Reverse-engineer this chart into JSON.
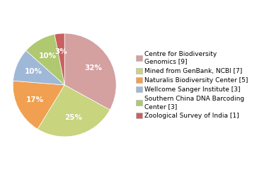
{
  "labels": [
    "Centre for Biodiversity\nGenomics [9]",
    "Mined from GenBank, NCBI [7]",
    "Naturalis Biodiversity Center [5]",
    "Wellcome Sanger Institute [3]",
    "Southern China DNA Barcoding\nCenter [3]",
    "Zoological Survey of India [1]"
  ],
  "values": [
    32,
    25,
    17,
    10,
    10,
    3
  ],
  "colors": [
    "#d4a0a0",
    "#c8d47e",
    "#f0a050",
    "#a0b8d8",
    "#b0c870",
    "#c86060"
  ],
  "pct_labels": [
    "32%",
    "25%",
    "17%",
    "10%",
    "10%",
    "3%"
  ],
  "startangle": 90,
  "background_color": "#ffffff",
  "fontsize": 6.5,
  "label_fontsize": 7.5
}
